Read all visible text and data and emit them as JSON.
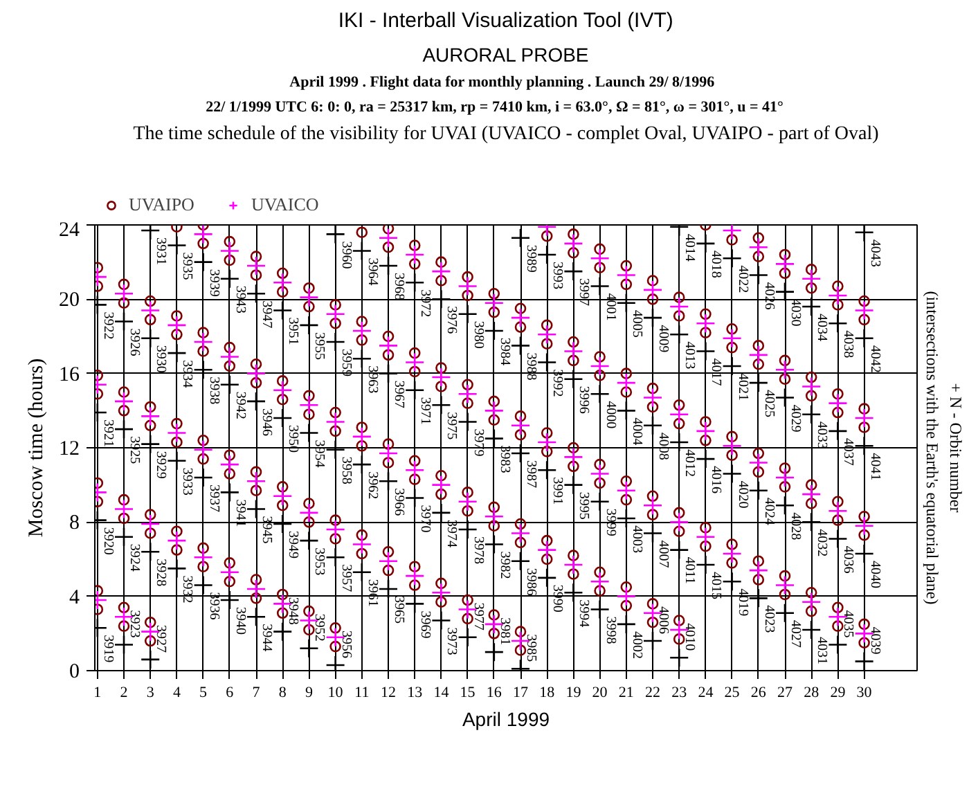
{
  "chart_data": {
    "type": "scatter",
    "title": "IKI - Interball Visualization Tool (IVT)",
    "subtitle": "AURORAL PROBE",
    "xlabel": "April 1999",
    "ylabel": "Moscow time (hours)",
    "y2label": "+ N - Orbit number\n(intersections with the Earth's equatorial plane)",
    "xlim": [
      0.9,
      32
    ],
    "xticks": [
      1,
      2,
      3,
      4,
      5,
      6,
      7,
      8,
      9,
      10,
      11,
      12,
      13,
      14,
      15,
      16,
      17,
      18,
      19,
      20,
      21,
      22,
      23,
      24,
      25,
      26,
      27,
      28,
      29,
      30
    ],
    "ylim": [
      0,
      24
    ],
    "yticks": [
      0,
      4,
      8,
      12,
      16,
      20,
      24
    ],
    "grid": true,
    "legend": "top left",
    "series": [
      {
        "name": "UVAIPO",
        "color": "#800000",
        "marker": "circle",
        "x": [
          1,
          1,
          1,
          1,
          1,
          1,
          1,
          1,
          2,
          2,
          2,
          2,
          2,
          2,
          2,
          2,
          3,
          3,
          3,
          3,
          3,
          3,
          3,
          3,
          4,
          4,
          4,
          4,
          4,
          4,
          4,
          5,
          5,
          5,
          5,
          5,
          5,
          5,
          5,
          6,
          6,
          6,
          6,
          6,
          6,
          6,
          6,
          7,
          7,
          7,
          7,
          7,
          7,
          7,
          7,
          8,
          8,
          8,
          8,
          8,
          8,
          8,
          8,
          9,
          9,
          9,
          9,
          9,
          9,
          9,
          9,
          10,
          10,
          10,
          10,
          10,
          10,
          10,
          10,
          11,
          11,
          11,
          11,
          11,
          11,
          11,
          12,
          12,
          12,
          12,
          12,
          12,
          12,
          12,
          13,
          13,
          13,
          13,
          13,
          13,
          13,
          13,
          14,
          14,
          14,
          14,
          14,
          14,
          14,
          14,
          15,
          15,
          15,
          15,
          15,
          15,
          15,
          15,
          16,
          16,
          16,
          16,
          16,
          16,
          16,
          16,
          17,
          17,
          17,
          17,
          17,
          17,
          17,
          17,
          18,
          18,
          18,
          18,
          18,
          18,
          18,
          19,
          19,
          19,
          19,
          19,
          19,
          19,
          19,
          20,
          20,
          20,
          20,
          20,
          20,
          20,
          20,
          21,
          21,
          21,
          21,
          21,
          21,
          21,
          21,
          22,
          22,
          22,
          22,
          22,
          22,
          22,
          22,
          23,
          23,
          23,
          23,
          23,
          23,
          23,
          23,
          24,
          24,
          24,
          24,
          24,
          24,
          24,
          25,
          25,
          25,
          25,
          25,
          25,
          25,
          26,
          26,
          26,
          26,
          26,
          26,
          26,
          26,
          27,
          27,
          27,
          27,
          27,
          27,
          27,
          27,
          28,
          28,
          28,
          28,
          28,
          28,
          28,
          28,
          29,
          29,
          29,
          29,
          29,
          29,
          29,
          29,
          30,
          30,
          30,
          30,
          30,
          30,
          30,
          30
        ],
        "values": [
          3.3,
          4.3,
          9.1,
          10.1,
          14.9,
          15.9,
          20.7,
          21.7,
          2.4,
          3.4,
          8.2,
          9.2,
          14.0,
          15.0,
          19.8,
          20.8,
          1.6,
          2.6,
          7.4,
          8.4,
          13.2,
          14.2,
          18.9,
          19.9,
          6.5,
          7.5,
          12.3,
          13.3,
          18.1,
          19.1,
          23.9,
          5.6,
          6.6,
          11.4,
          12.4,
          17.2,
          18.2,
          23.0,
          24.0,
          4.8,
          5.8,
          10.6,
          11.6,
          16.4,
          17.4,
          22.1,
          23.1,
          3.9,
          4.9,
          9.7,
          10.7,
          15.5,
          16.5,
          21.3,
          22.3,
          3.1,
          4.1,
          8.9,
          9.9,
          14.6,
          15.6,
          20.4,
          21.4,
          2.2,
          3.2,
          8.0,
          9.0,
          13.8,
          14.8,
          19.6,
          20.6,
          1.3,
          2.3,
          7.1,
          8.1,
          12.9,
          13.9,
          18.7,
          19.7,
          6.3,
          7.3,
          12.1,
          13.1,
          17.8,
          18.8,
          23.6,
          5.4,
          6.4,
          11.2,
          12.2,
          17.0,
          18.0,
          22.8,
          23.8,
          4.6,
          5.6,
          10.3,
          11.3,
          16.1,
          17.1,
          21.9,
          22.9,
          3.7,
          4.7,
          9.5,
          10.5,
          15.3,
          16.3,
          21.0,
          22.0,
          2.8,
          3.8,
          8.6,
          9.6,
          14.4,
          15.4,
          20.2,
          21.2,
          2.0,
          3.0,
          7.8,
          8.8,
          13.5,
          14.5,
          19.3,
          20.3,
          1.1,
          2.1,
          6.9,
          7.9,
          12.7,
          13.7,
          18.5,
          19.5,
          6.0,
          7.0,
          11.8,
          12.8,
          17.6,
          18.6,
          23.4,
          5.2,
          6.2,
          11.0,
          12.0,
          16.7,
          17.7,
          22.5,
          23.5,
          4.3,
          5.3,
          10.1,
          11.1,
          15.9,
          16.9,
          21.7,
          22.7,
          3.5,
          4.5,
          9.2,
          10.2,
          15.0,
          16.0,
          20.8,
          21.8,
          2.6,
          3.6,
          8.4,
          9.4,
          14.2,
          15.2,
          20.0,
          21.0,
          1.7,
          2.7,
          7.5,
          8.5,
          13.3,
          14.3,
          19.1,
          20.1,
          6.7,
          7.7,
          12.4,
          13.4,
          18.2,
          19.2,
          24.0,
          5.8,
          6.8,
          11.6,
          12.6,
          17.4,
          18.4,
          23.2,
          4.9,
          5.9,
          10.7,
          11.7,
          16.5,
          17.5,
          22.3,
          23.3,
          4.1,
          5.1,
          9.9,
          10.9,
          15.7,
          16.7,
          21.4,
          22.4,
          3.2,
          4.2,
          9.0,
          10.0,
          14.8,
          15.8,
          20.6,
          21.6,
          2.4,
          3.4,
          8.1,
          9.1,
          13.9,
          14.9,
          19.7,
          20.7,
          1.5,
          2.5,
          7.3,
          8.3,
          13.1,
          14.1,
          18.9,
          19.9
        ]
      },
      {
        "name": "UVAICO",
        "color": "#ff00ff",
        "marker": "cross",
        "x": [
          1,
          1,
          1,
          1,
          2,
          2,
          2,
          2,
          3,
          3,
          3,
          3,
          4,
          4,
          4,
          5,
          5,
          5,
          5,
          6,
          6,
          6,
          6,
          7,
          7,
          7,
          7,
          8,
          8,
          8,
          8,
          9,
          9,
          9,
          9,
          10,
          10,
          10,
          10,
          11,
          11,
          11,
          12,
          12,
          12,
          12,
          13,
          13,
          13,
          13,
          14,
          14,
          14,
          14,
          15,
          15,
          15,
          15,
          16,
          16,
          16,
          16,
          17,
          17,
          17,
          17,
          18,
          18,
          18,
          18,
          19,
          19,
          19,
          19,
          20,
          20,
          20,
          20,
          21,
          21,
          21,
          21,
          22,
          22,
          22,
          22,
          23,
          23,
          23,
          23,
          24,
          24,
          24,
          25,
          25,
          25,
          25,
          26,
          26,
          26,
          26,
          27,
          27,
          27,
          27,
          28,
          28,
          28,
          28,
          29,
          29,
          29,
          29,
          30,
          30,
          30,
          30
        ],
        "values": [
          3.8,
          9.6,
          15.4,
          21.2,
          2.9,
          8.7,
          14.5,
          20.3,
          2.1,
          7.9,
          13.7,
          19.4,
          7.0,
          12.8,
          18.6,
          6.1,
          11.9,
          17.7,
          23.5,
          5.3,
          11.1,
          16.9,
          22.6,
          4.4,
          10.2,
          16.0,
          21.8,
          3.6,
          9.4,
          15.1,
          20.9,
          2.7,
          8.5,
          14.3,
          20.1,
          1.8,
          7.6,
          13.4,
          19.2,
          6.8,
          12.6,
          18.3,
          5.9,
          11.7,
          17.5,
          23.3,
          5.1,
          10.8,
          16.6,
          22.4,
          4.2,
          10.0,
          15.8,
          21.5,
          3.3,
          9.1,
          14.9,
          20.7,
          2.5,
          8.3,
          14.0,
          19.8,
          1.6,
          7.4,
          13.2,
          19.0,
          6.5,
          12.3,
          18.1,
          23.9,
          5.7,
          11.5,
          17.2,
          23.0,
          4.8,
          10.6,
          16.4,
          22.2,
          4.0,
          9.7,
          15.5,
          21.3,
          3.1,
          8.9,
          14.7,
          20.5,
          2.2,
          8.0,
          13.8,
          19.6,
          7.2,
          12.9,
          18.7,
          6.3,
          12.1,
          17.9,
          23.7,
          5.4,
          11.2,
          17.0,
          22.8,
          4.6,
          10.4,
          16.2,
          21.9,
          3.7,
          9.5,
          15.3,
          21.1,
          2.9,
          8.6,
          14.4,
          20.2,
          2.0,
          7.8,
          13.6,
          19.4
        ]
      },
      {
        "color": "#000000",
        "marker": "cross",
        "x": [
          1,
          1,
          1,
          1,
          2,
          2,
          2,
          2,
          3,
          3,
          3,
          3,
          3,
          4,
          4,
          4,
          4,
          5,
          5,
          5,
          5,
          6,
          6,
          6,
          6,
          7,
          7,
          7,
          7,
          8,
          8,
          8,
          8,
          9,
          9,
          9,
          9,
          10,
          10,
          10,
          10,
          10,
          11,
          11,
          11,
          11,
          12,
          12,
          12,
          12,
          13,
          13,
          13,
          13,
          14,
          14,
          14,
          14,
          15,
          15,
          15,
          15,
          16,
          16,
          16,
          16,
          17,
          17,
          17,
          17,
          17,
          18,
          18,
          18,
          18,
          19,
          19,
          19,
          19,
          20,
          20,
          20,
          20,
          21,
          21,
          21,
          21,
          22,
          22,
          22,
          22,
          23,
          23,
          23,
          23,
          23,
          24,
          24,
          24,
          24,
          25,
          25,
          25,
          25,
          26,
          26,
          26,
          26,
          27,
          27,
          27,
          27,
          28,
          28,
          28,
          28,
          29,
          29,
          29,
          29,
          30,
          30,
          30,
          30,
          30
        ],
        "values": [
          2.3,
          8.1,
          13.9,
          19.7,
          1.4,
          7.2,
          13.0,
          18.8,
          0.6,
          6.4,
          12.2,
          17.9,
          23.7,
          5.5,
          11.3,
          17.1,
          22.9,
          4.6,
          10.4,
          16.2,
          22.0,
          3.8,
          9.6,
          15.4,
          21.1,
          2.9,
          8.7,
          14.5,
          20.3,
          2.1,
          7.9,
          13.6,
          19.4,
          1.2,
          7.0,
          12.8,
          18.6,
          0.3,
          6.1,
          11.9,
          17.7,
          23.5,
          5.3,
          11.1,
          16.8,
          22.6,
          4.4,
          10.2,
          16.0,
          21.8,
          3.6,
          9.3,
          15.1,
          20.9,
          2.7,
          8.5,
          14.3,
          20.0,
          1.8,
          7.6,
          13.4,
          19.2,
          1.0,
          6.8,
          12.5,
          18.3,
          0.1,
          5.9,
          11.7,
          17.5,
          23.3,
          5.0,
          10.8,
          16.6,
          22.4,
          4.2,
          10.0,
          15.7,
          21.5,
          3.3,
          9.1,
          14.9,
          20.7,
          2.5,
          8.2,
          14.0,
          19.8,
          1.6,
          7.4,
          13.2,
          19.0,
          0.7,
          6.5,
          12.3,
          18.1,
          23.9,
          5.7,
          11.4,
          17.2,
          23.0,
          4.8,
          10.6,
          16.4,
          22.2,
          3.9,
          9.7,
          15.5,
          21.3,
          3.1,
          8.9,
          14.7,
          20.4,
          2.2,
          8.0,
          13.8,
          19.6,
          1.4,
          7.1,
          12.9,
          18.7,
          0.5,
          6.3,
          12.1,
          17.9,
          23.6
        ]
      }
    ],
    "annotations": [
      "April 1999 .  Flight data for monthly planning .  Launch 29/ 8/1996",
      "22/ 1/1999 UTC  6: 0: 0, ra =  25317 km, rp =   7410 km, i = 63.0°, Ω =  81°, ω = 301°, u =  41°",
      "The time schedule of the visibility for UVAI (UVAICO - complet Oval, UVAIPO - part of Oval)",
      {
        "text": "3919",
        "x": 1,
        "y": 2.3
      },
      {
        "text": "3920",
        "x": 1,
        "y": 8.1
      },
      {
        "text": "3921",
        "x": 1,
        "y": 13.9
      },
      {
        "text": "3922",
        "x": 1,
        "y": 19.7
      },
      {
        "text": "3923",
        "x": 2,
        "y": 1.4
      },
      {
        "text": "3924",
        "x": 2,
        "y": 7.2
      },
      {
        "text": "3925",
        "x": 2,
        "y": 13.0
      },
      {
        "text": "3926",
        "x": 2,
        "y": 18.8
      },
      {
        "text": "3927",
        "x": 3,
        "y": 0.6
      },
      {
        "text": "3928",
        "x": 3,
        "y": 6.4
      },
      {
        "text": "3929",
        "x": 3,
        "y": 12.2
      },
      {
        "text": "3930",
        "x": 3,
        "y": 17.9
      },
      {
        "text": "3931",
        "x": 3,
        "y": 23.7
      },
      {
        "text": "3932",
        "x": 4,
        "y": 5.5
      },
      {
        "text": "3933",
        "x": 4,
        "y": 11.3
      },
      {
        "text": "3934",
        "x": 4,
        "y": 17.1
      },
      {
        "text": "3935",
        "x": 4,
        "y": 22.9
      },
      {
        "text": "3936",
        "x": 5,
        "y": 4.6
      },
      {
        "text": "3937",
        "x": 5,
        "y": 10.4
      },
      {
        "text": "3938",
        "x": 5,
        "y": 16.2
      },
      {
        "text": "3939",
        "x": 5,
        "y": 22.0
      },
      {
        "text": "3940",
        "x": 6,
        "y": 3.8
      },
      {
        "text": "3941",
        "x": 6,
        "y": 9.6
      },
      {
        "text": "3942",
        "x": 6,
        "y": 15.4
      },
      {
        "text": "3943",
        "x": 6,
        "y": 21.1
      },
      {
        "text": "3944",
        "x": 7,
        "y": 2.9
      },
      {
        "text": "3945",
        "x": 7,
        "y": 8.7
      },
      {
        "text": "3946",
        "x": 7,
        "y": 14.5
      },
      {
        "text": "3947",
        "x": 7,
        "y": 20.3
      },
      {
        "text": "3948",
        "x": 8,
        "y": 2.1
      },
      {
        "text": "3949",
        "x": 8,
        "y": 7.9
      },
      {
        "text": "3950",
        "x": 8,
        "y": 13.6
      },
      {
        "text": "3951",
        "x": 8,
        "y": 19.4
      },
      {
        "text": "3952",
        "x": 9,
        "y": 1.2
      },
      {
        "text": "3953",
        "x": 9,
        "y": 7.0
      },
      {
        "text": "3954",
        "x": 9,
        "y": 12.8
      },
      {
        "text": "3955",
        "x": 9,
        "y": 18.6
      },
      {
        "text": "3956",
        "x": 10,
        "y": 0.3
      },
      {
        "text": "3957",
        "x": 10,
        "y": 6.1
      },
      {
        "text": "3958",
        "x": 10,
        "y": 11.9
      },
      {
        "text": "3959",
        "x": 10,
        "y": 17.7
      },
      {
        "text": "3960",
        "x": 10,
        "y": 23.5
      },
      {
        "text": "3961",
        "x": 11,
        "y": 5.3
      },
      {
        "text": "3962",
        "x": 11,
        "y": 11.1
      },
      {
        "text": "3963",
        "x": 11,
        "y": 16.8
      },
      {
        "text": "3964",
        "x": 11,
        "y": 22.6
      },
      {
        "text": "3965",
        "x": 12,
        "y": 4.4
      },
      {
        "text": "3966",
        "x": 12,
        "y": 10.2
      },
      {
        "text": "3967",
        "x": 12,
        "y": 16.0
      },
      {
        "text": "3968",
        "x": 12,
        "y": 21.8
      },
      {
        "text": "3969",
        "x": 13,
        "y": 3.6
      },
      {
        "text": "3970",
        "x": 13,
        "y": 9.3
      },
      {
        "text": "3971",
        "x": 13,
        "y": 15.1
      },
      {
        "text": "3972",
        "x": 13,
        "y": 20.9
      },
      {
        "text": "3973",
        "x": 14,
        "y": 2.7
      },
      {
        "text": "3974",
        "x": 14,
        "y": 8.5
      },
      {
        "text": "3975",
        "x": 14,
        "y": 14.3
      },
      {
        "text": "3976",
        "x": 14,
        "y": 20.0
      },
      {
        "text": "3977",
        "x": 15,
        "y": 1.8
      },
      {
        "text": "3978",
        "x": 15,
        "y": 7.6
      },
      {
        "text": "3979",
        "x": 15,
        "y": 13.4
      },
      {
        "text": "3980",
        "x": 15,
        "y": 19.2
      },
      {
        "text": "3981",
        "x": 16,
        "y": 1.0
      },
      {
        "text": "3982",
        "x": 16,
        "y": 6.8
      },
      {
        "text": "3983",
        "x": 16,
        "y": 12.5
      },
      {
        "text": "3984",
        "x": 16,
        "y": 18.3
      },
      {
        "text": "3985",
        "x": 17,
        "y": 0.1
      },
      {
        "text": "3986",
        "x": 17,
        "y": 5.9
      },
      {
        "text": "3987",
        "x": 17,
        "y": 11.7
      },
      {
        "text": "3988",
        "x": 17,
        "y": 17.5
      },
      {
        "text": "3989",
        "x": 17,
        "y": 23.3
      },
      {
        "text": "3990",
        "x": 18,
        "y": 5.0
      },
      {
        "text": "3991",
        "x": 18,
        "y": 10.8
      },
      {
        "text": "3992",
        "x": 18,
        "y": 16.6
      },
      {
        "text": "3993",
        "x": 18,
        "y": 22.4
      },
      {
        "text": "3994",
        "x": 19,
        "y": 4.2
      },
      {
        "text": "3995",
        "x": 19,
        "y": 10.0
      },
      {
        "text": "3996",
        "x": 19,
        "y": 15.7
      },
      {
        "text": "3997",
        "x": 19,
        "y": 21.5
      },
      {
        "text": "3998",
        "x": 20,
        "y": 3.3
      },
      {
        "text": "3999",
        "x": 20,
        "y": 9.1
      },
      {
        "text": "4000",
        "x": 20,
        "y": 14.9
      },
      {
        "text": "4001",
        "x": 20,
        "y": 20.7
      },
      {
        "text": "4002",
        "x": 21,
        "y": 2.5
      },
      {
        "text": "4003",
        "x": 21,
        "y": 8.2
      },
      {
        "text": "4004",
        "x": 21,
        "y": 14.0
      },
      {
        "text": "4005",
        "x": 21,
        "y": 19.8
      },
      {
        "text": "4006",
        "x": 22,
        "y": 1.6
      },
      {
        "text": "4007",
        "x": 22,
        "y": 7.4
      },
      {
        "text": "4008",
        "x": 22,
        "y": 13.2
      },
      {
        "text": "4009",
        "x": 22,
        "y": 19.0
      },
      {
        "text": "4010",
        "x": 23,
        "y": 0.7
      },
      {
        "text": "4011",
        "x": 23,
        "y": 6.5
      },
      {
        "text": "4012",
        "x": 23,
        "y": 12.3
      },
      {
        "text": "4013",
        "x": 23,
        "y": 18.1
      },
      {
        "text": "4014",
        "x": 23,
        "y": 23.9
      },
      {
        "text": "4015",
        "x": 24,
        "y": 5.7
      },
      {
        "text": "4016",
        "x": 24,
        "y": 11.4
      },
      {
        "text": "4017",
        "x": 24,
        "y": 17.2
      },
      {
        "text": "4018",
        "x": 24,
        "y": 23.0
      },
      {
        "text": "4019",
        "x": 25,
        "y": 4.8
      },
      {
        "text": "4020",
        "x": 25,
        "y": 10.6
      },
      {
        "text": "4021",
        "x": 25,
        "y": 16.4
      },
      {
        "text": "4022",
        "x": 25,
        "y": 22.2
      },
      {
        "text": "4023",
        "x": 26,
        "y": 3.9
      },
      {
        "text": "4024",
        "x": 26,
        "y": 9.7
      },
      {
        "text": "4025",
        "x": 26,
        "y": 15.5
      },
      {
        "text": "4026",
        "x": 26,
        "y": 21.3
      },
      {
        "text": "4027",
        "x": 27,
        "y": 3.1
      },
      {
        "text": "4028",
        "x": 27,
        "y": 8.9
      },
      {
        "text": "4029",
        "x": 27,
        "y": 14.7
      },
      {
        "text": "4030",
        "x": 27,
        "y": 20.4
      },
      {
        "text": "4031",
        "x": 28,
        "y": 2.2
      },
      {
        "text": "4032",
        "x": 28,
        "y": 8.0
      },
      {
        "text": "4033",
        "x": 28,
        "y": 13.8
      },
      {
        "text": "4034",
        "x": 28,
        "y": 19.6
      },
      {
        "text": "4035",
        "x": 29,
        "y": 1.4
      },
      {
        "text": "4036",
        "x": 29,
        "y": 7.1
      },
      {
        "text": "4037",
        "x": 29,
        "y": 12.9
      },
      {
        "text": "4038",
        "x": 29,
        "y": 18.7
      },
      {
        "text": "4039",
        "x": 30,
        "y": 0.5
      },
      {
        "text": "4040",
        "x": 30,
        "y": 6.3
      },
      {
        "text": "4041",
        "x": 30,
        "y": 12.1
      },
      {
        "text": "4042",
        "x": 30,
        "y": 17.9
      },
      {
        "text": "4043",
        "x": 30,
        "y": 23.6
      }
    ]
  }
}
